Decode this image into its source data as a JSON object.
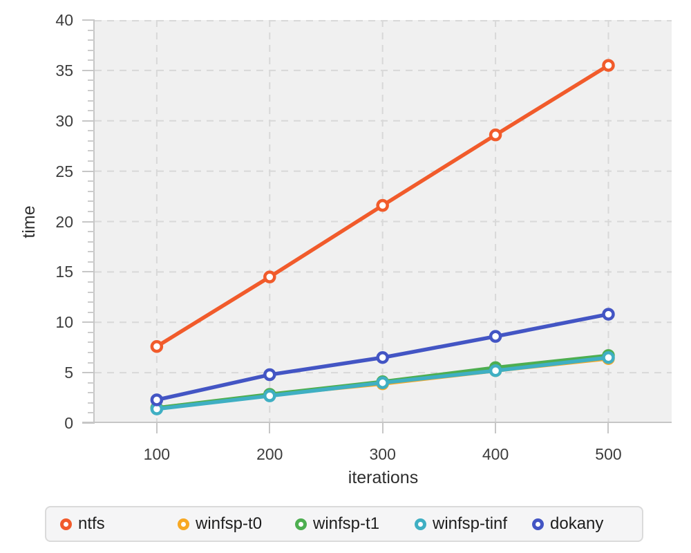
{
  "chart_data": {
    "type": "line",
    "title": "",
    "xlabel": "iterations",
    "ylabel": "time",
    "x": [
      100,
      200,
      300,
      400,
      500
    ],
    "series": [
      {
        "name": "ntfs",
        "color": "#F15B2B",
        "values": [
          7.6,
          14.5,
          21.6,
          28.6,
          35.5
        ]
      },
      {
        "name": "winfsp-t0",
        "color": "#F7A823",
        "values": [
          1.5,
          2.8,
          3.9,
          5.2,
          6.4
        ]
      },
      {
        "name": "winfsp-t1",
        "color": "#4DAE50",
        "values": [
          1.5,
          2.85,
          4.1,
          5.5,
          6.7
        ]
      },
      {
        "name": "winfsp-tinf",
        "color": "#3FAFC3",
        "values": [
          1.4,
          2.7,
          4.0,
          5.2,
          6.5
        ]
      },
      {
        "name": "dokany",
        "color": "#4355C4",
        "values": [
          2.3,
          4.8,
          6.5,
          8.6,
          10.8
        ]
      }
    ],
    "xticks": [
      100,
      200,
      300,
      400,
      500
    ],
    "yticks": [
      0,
      5,
      10,
      15,
      20,
      25,
      30,
      35,
      40
    ],
    "y_minor_tick_step": 1,
    "xlim": [
      45,
      556
    ],
    "ylim": [
      0,
      40
    ],
    "grid": "dashed",
    "grid_color": "#d8d8d8",
    "axis_color": "#c6c6c6",
    "plot_background": "#f0f0f0",
    "legend_position": "bottom",
    "marker": "open-circle"
  }
}
